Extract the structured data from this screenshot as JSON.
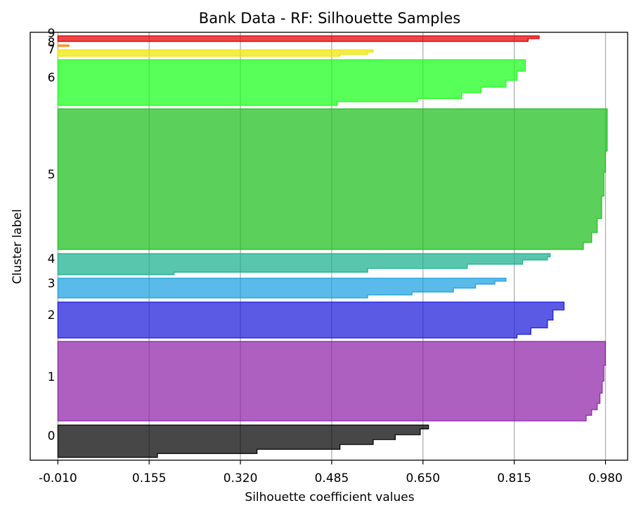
{
  "chart_data": {
    "type": "area",
    "title": "Bank Data - RF: Silhouette Samples",
    "xlabel": "Silhouette coefficient values",
    "ylabel": "Cluster label",
    "xlim": [
      -0.06,
      1.02
    ],
    "x_ticks": [
      "-0.010",
      "0.155",
      "0.320",
      "0.485",
      "0.650",
      "0.815",
      "0.980"
    ],
    "x_tick_values": [
      -0.01,
      0.155,
      0.32,
      0.485,
      0.65,
      0.815,
      0.98
    ],
    "grid": "x-axis vertical lines",
    "legend": "none",
    "clusters": [
      {
        "label": "0",
        "color": "#000000",
        "profile": [
          [
            0,
            0.66
          ],
          [
            0.12,
            0.645
          ],
          [
            0.3,
            0.6
          ],
          [
            0.45,
            0.56
          ],
          [
            0.6,
            0.5
          ],
          [
            0.75,
            0.35
          ],
          [
            0.88,
            0.17
          ],
          [
            1,
            0.165
          ]
        ]
      },
      {
        "label": "1",
        "color": "#8e22a8",
        "profile": [
          [
            0,
            0.98
          ],
          [
            0.3,
            0.977
          ],
          [
            0.5,
            0.974
          ],
          [
            0.65,
            0.97
          ],
          [
            0.78,
            0.965
          ],
          [
            0.86,
            0.955
          ],
          [
            0.93,
            0.945
          ],
          [
            1,
            0.935
          ]
        ]
      },
      {
        "label": "2",
        "color": "#1a1adb",
        "profile": [
          [
            0,
            0.905
          ],
          [
            0.22,
            0.885
          ],
          [
            0.5,
            0.875
          ],
          [
            0.72,
            0.845
          ],
          [
            0.9,
            0.82
          ],
          [
            1,
            0.795
          ]
        ]
      },
      {
        "label": "3",
        "color": "#1aa0e0",
        "profile": [
          [
            0,
            0.8
          ],
          [
            0.15,
            0.78
          ],
          [
            0.3,
            0.745
          ],
          [
            0.5,
            0.705
          ],
          [
            0.7,
            0.63
          ],
          [
            0.85,
            0.55
          ],
          [
            1,
            0.43
          ]
        ]
      },
      {
        "label": "4",
        "color": "#17b08e",
        "profile": [
          [
            0,
            0.88
          ],
          [
            0.15,
            0.875
          ],
          [
            0.3,
            0.83
          ],
          [
            0.5,
            0.73
          ],
          [
            0.7,
            0.55
          ],
          [
            0.88,
            0.2
          ],
          [
            1,
            0.19
          ]
        ]
      },
      {
        "label": "5",
        "color": "#1cbf1c",
        "profile": [
          [
            0,
            0.983
          ],
          [
            0.3,
            0.98
          ],
          [
            0.45,
            0.977
          ],
          [
            0.62,
            0.973
          ],
          [
            0.78,
            0.965
          ],
          [
            0.88,
            0.955
          ],
          [
            0.95,
            0.94
          ],
          [
            1,
            0.92
          ]
        ]
      },
      {
        "label": "6",
        "color": "#19ff19",
        "profile": [
          [
            0,
            0.835
          ],
          [
            0.25,
            0.82
          ],
          [
            0.45,
            0.8
          ],
          [
            0.6,
            0.755
          ],
          [
            0.72,
            0.72
          ],
          [
            0.85,
            0.64
          ],
          [
            0.92,
            0.495
          ],
          [
            1,
            0.34
          ]
        ]
      },
      {
        "label": "7",
        "color": "#f0e500",
        "profile": [
          [
            0,
            0.56
          ],
          [
            0.35,
            0.55
          ],
          [
            0.7,
            0.5
          ],
          [
            1,
            0.49
          ]
        ]
      },
      {
        "label": "8",
        "color": "#ff8800",
        "profile": [
          [
            0,
            0.01
          ],
          [
            1,
            0.0
          ]
        ]
      },
      {
        "label": "9",
        "color": "#e00000",
        "profile": [
          [
            0,
            0.86
          ],
          [
            0.5,
            0.84
          ],
          [
            1,
            0.82
          ]
        ]
      }
    ]
  }
}
